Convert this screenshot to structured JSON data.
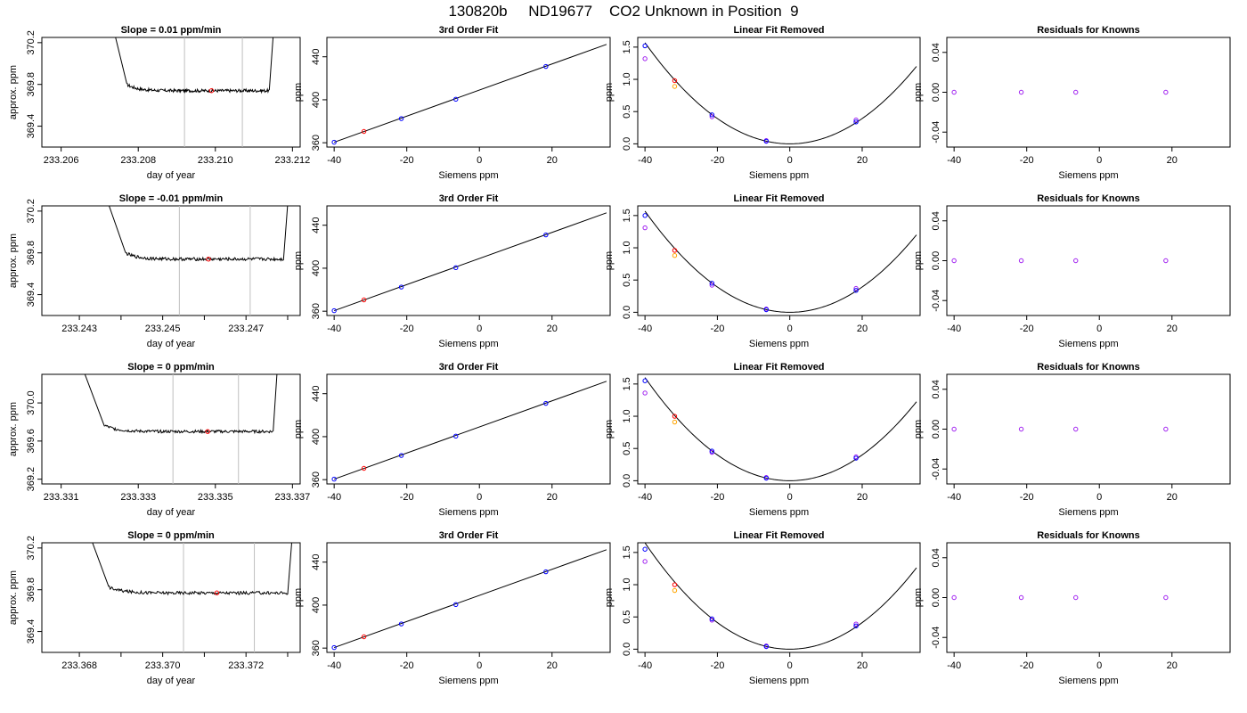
{
  "title": "130820b     ND19677    CO2 Unknown in Position  9",
  "colors": {
    "known": "#0000ff",
    "known2": "#a020f0",
    "unknown": "#ff0000",
    "unknown2": "#ffa500",
    "trace": "#000000",
    "marker_line": "#bebebe"
  },
  "chart_data": [
    {
      "type": "line",
      "row": 0,
      "col": 0,
      "title": "Slope =  0.01  ppm/min",
      "xlabel": "day of year",
      "ylabel": "approx. ppm",
      "xlim": [
        233.2055,
        233.2122
      ],
      "ylim": [
        369.2,
        370.25
      ],
      "xticks": [
        233.206,
        233.208,
        233.21,
        233.212
      ],
      "xtick_labels": [
        "233.206",
        "233.208",
        "233.210",
        "233.212"
      ],
      "yticks": [
        369.4,
        369.8,
        370.2
      ],
      "ytick_labels": [
        "369.4",
        "369.8",
        "370.2"
      ],
      "trace_start": 233.2074,
      "trace_end": 233.2115,
      "flat_start": 233.2077,
      "flat_end": 233.2114,
      "baseline": 369.74,
      "settle_from": 370.25,
      "vlines": [
        233.2092,
        233.2107
      ],
      "marker": {
        "x": 233.2099,
        "y": 369.74
      }
    },
    {
      "type": "scatter",
      "row": 0,
      "col": 1,
      "title": "3rd Order Fit",
      "xlabel": "Siemens ppm",
      "ylabel": "ppm",
      "xlim": [
        -42,
        36
      ],
      "ylim": [
        356,
        458
      ],
      "xticks": [
        -40,
        -20,
        0,
        20
      ],
      "xtick_labels": [
        "-40",
        "-20",
        "0",
        "20"
      ],
      "yticks": [
        360,
        400,
        440
      ],
      "ytick_labels": [
        "360",
        "400",
        "440"
      ],
      "line": {
        "x": [
          -40,
          35
        ],
        "y": [
          360.5,
          451.5
        ]
      },
      "points_known": [
        {
          "x": -40,
          "y": 360.5
        },
        {
          "x": -21.5,
          "y": 382.5
        },
        {
          "x": -6.5,
          "y": 400.5
        },
        {
          "x": 18.3,
          "y": 431
        }
      ],
      "points_unknown": [
        {
          "x": -31.8,
          "y": 370.5
        }
      ]
    },
    {
      "type": "scatter",
      "row": 0,
      "col": 2,
      "title": "Linear Fit Removed",
      "xlabel": "Siemens ppm",
      "ylabel": "ppm",
      "xlim": [
        -42,
        36
      ],
      "ylim": [
        -0.05,
        1.65
      ],
      "xticks": [
        -40,
        -20,
        0,
        20
      ],
      "xtick_labels": [
        "-40",
        "-20",
        "0",
        "20"
      ],
      "yticks": [
        0.0,
        0.5,
        1.0,
        1.5
      ],
      "ytick_labels": [
        "0.0",
        "0.5",
        "1.0",
        "1.5"
      ],
      "curve": {
        "a": 0.00098,
        "x0": 0,
        "x_start": -40,
        "x_end": 35
      },
      "points_known": [
        {
          "x": -40,
          "y": 1.52
        },
        {
          "x": -21.5,
          "y": 0.45
        },
        {
          "x": -6.5,
          "y": 0.04
        },
        {
          "x": 18.3,
          "y": 0.34
        }
      ],
      "points_known2": [
        {
          "x": -40,
          "y": 1.32
        },
        {
          "x": -21.5,
          "y": 0.42
        },
        {
          "x": -6.5,
          "y": 0.05
        },
        {
          "x": 18.3,
          "y": 0.37
        }
      ],
      "points_unknown": [
        {
          "x": -31.8,
          "y": 0.98
        }
      ],
      "points_unknown2": [
        {
          "x": -31.8,
          "y": 0.89
        }
      ]
    },
    {
      "type": "scatter",
      "row": 0,
      "col": 3,
      "title": "Residuals for Knowns",
      "xlabel": "Siemens ppm",
      "ylabel": "ppm",
      "xlim": [
        -42,
        36
      ],
      "ylim": [
        -0.055,
        0.055
      ],
      "xticks": [
        -40,
        -20,
        0,
        20
      ],
      "xtick_labels": [
        "-40",
        "-20",
        "0",
        "20"
      ],
      "yticks": [
        -0.04,
        0.0,
        0.04
      ],
      "ytick_labels": [
        "-0.04",
        "0.00",
        "0.04"
      ],
      "points_known2": [
        {
          "x": -40,
          "y": 0
        },
        {
          "x": -21.5,
          "y": 0
        },
        {
          "x": -6.5,
          "y": 0
        },
        {
          "x": 18.3,
          "y": 0
        }
      ]
    },
    {
      "type": "line",
      "row": 1,
      "col": 0,
      "title": "Slope =  -0.01  ppm/min",
      "xlabel": "day of year",
      "ylabel": "approx. ppm",
      "xlim": [
        233.2421,
        233.2483
      ],
      "ylim": [
        369.2,
        370.25
      ],
      "xticks": [
        233.243,
        233.244,
        233.245,
        233.246,
        233.247,
        233.248
      ],
      "xtick_labels": [
        "233.243",
        "",
        "233.245",
        "",
        "233.247",
        ""
      ],
      "yticks": [
        369.4,
        369.8,
        370.2
      ],
      "ytick_labels": [
        "369.4",
        "369.8",
        "370.2"
      ],
      "trace_start": 233.2437,
      "trace_end": 233.248,
      "flat_start": 233.2441,
      "flat_end": 233.2479,
      "baseline": 369.74,
      "settle_from": 370.25,
      "vlines": [
        233.2454,
        233.2471
      ],
      "marker": {
        "x": 233.2461,
        "y": 369.74
      }
    },
    {
      "type": "scatter",
      "row": 1,
      "col": 1,
      "title": "3rd Order Fit",
      "xlabel": "Siemens ppm",
      "ylabel": "ppm",
      "xlim": [
        -42,
        36
      ],
      "ylim": [
        356,
        458
      ],
      "xticks": [
        -40,
        -20,
        0,
        20
      ],
      "xtick_labels": [
        "-40",
        "-20",
        "0",
        "20"
      ],
      "yticks": [
        360,
        400,
        440
      ],
      "ytick_labels": [
        "360",
        "400",
        "440"
      ],
      "line": {
        "x": [
          -40,
          35
        ],
        "y": [
          360.5,
          451.5
        ]
      },
      "points_known": [
        {
          "x": -40,
          "y": 360.5
        },
        {
          "x": -21.5,
          "y": 382.5
        },
        {
          "x": -6.5,
          "y": 400.5
        },
        {
          "x": 18.3,
          "y": 431
        }
      ],
      "points_unknown": [
        {
          "x": -31.8,
          "y": 370.5
        }
      ]
    },
    {
      "type": "scatter",
      "row": 1,
      "col": 2,
      "title": "Linear Fit Removed",
      "xlabel": "Siemens ppm",
      "ylabel": "ppm",
      "xlim": [
        -42,
        36
      ],
      "ylim": [
        -0.05,
        1.65
      ],
      "xticks": [
        -40,
        -20,
        0,
        20
      ],
      "xtick_labels": [
        "-40",
        "-20",
        "0",
        "20"
      ],
      "yticks": [
        0.0,
        0.5,
        1.0,
        1.5
      ],
      "ytick_labels": [
        "0.0",
        "0.5",
        "1.0",
        "1.5"
      ],
      "curve": {
        "a": 0.00098,
        "x0": 0,
        "x_start": -40,
        "x_end": 35
      },
      "points_known": [
        {
          "x": -40,
          "y": 1.5
        },
        {
          "x": -21.5,
          "y": 0.45
        },
        {
          "x": -6.5,
          "y": 0.04
        },
        {
          "x": 18.3,
          "y": 0.34
        }
      ],
      "points_known2": [
        {
          "x": -40,
          "y": 1.31
        },
        {
          "x": -21.5,
          "y": 0.42
        },
        {
          "x": -6.5,
          "y": 0.05
        },
        {
          "x": 18.3,
          "y": 0.37
        }
      ],
      "points_unknown": [
        {
          "x": -31.8,
          "y": 0.96
        }
      ],
      "points_unknown2": [
        {
          "x": -31.8,
          "y": 0.88
        }
      ]
    },
    {
      "type": "scatter",
      "row": 1,
      "col": 3,
      "title": "Residuals for Knowns",
      "xlabel": "Siemens ppm",
      "ylabel": "ppm",
      "xlim": [
        -42,
        36
      ],
      "ylim": [
        -0.055,
        0.055
      ],
      "xticks": [
        -40,
        -20,
        0,
        20
      ],
      "xtick_labels": [
        "-40",
        "-20",
        "0",
        "20"
      ],
      "yticks": [
        -0.04,
        0.0,
        0.04
      ],
      "ytick_labels": [
        "-0.04",
        "0.00",
        "0.04"
      ],
      "points_known2": [
        {
          "x": -40,
          "y": 0
        },
        {
          "x": -21.5,
          "y": 0
        },
        {
          "x": -6.5,
          "y": 0
        },
        {
          "x": 18.3,
          "y": 0
        }
      ]
    },
    {
      "type": "line",
      "row": 2,
      "col": 0,
      "title": "Slope =  0  ppm/min",
      "xlabel": "day of year",
      "ylabel": "approx. ppm",
      "xlim": [
        233.3305,
        233.3372
      ],
      "ylim": [
        369.15,
        370.3
      ],
      "xticks": [
        233.331,
        233.333,
        233.335,
        233.337
      ],
      "xtick_labels": [
        "233.331",
        "233.333",
        "233.335",
        "233.337"
      ],
      "yticks": [
        369.2,
        369.6,
        370.0
      ],
      "ytick_labels": [
        "369.2",
        "369.6",
        "370.0"
      ],
      "trace_start": 233.3316,
      "trace_end": 233.3366,
      "flat_start": 233.3321,
      "flat_end": 233.3365,
      "baseline": 369.7,
      "settle_from": 370.3,
      "vlines": [
        233.3339,
        233.3356
      ],
      "marker": {
        "x": 233.3348,
        "y": 369.7
      }
    },
    {
      "type": "scatter",
      "row": 2,
      "col": 1,
      "title": "3rd Order Fit",
      "xlabel": "Siemens ppm",
      "ylabel": "ppm",
      "xlim": [
        -42,
        36
      ],
      "ylim": [
        356,
        458
      ],
      "xticks": [
        -40,
        -20,
        0,
        20
      ],
      "xtick_labels": [
        "-40",
        "-20",
        "0",
        "20"
      ],
      "yticks": [
        360,
        400,
        440
      ],
      "ytick_labels": [
        "360",
        "400",
        "440"
      ],
      "line": {
        "x": [
          -40,
          35
        ],
        "y": [
          360.5,
          451.5
        ]
      },
      "points_known": [
        {
          "x": -40,
          "y": 360.5
        },
        {
          "x": -21.5,
          "y": 382.5
        },
        {
          "x": -6.5,
          "y": 400.5
        },
        {
          "x": 18.3,
          "y": 431
        }
      ],
      "points_unknown": [
        {
          "x": -31.8,
          "y": 370.5
        }
      ]
    },
    {
      "type": "scatter",
      "row": 2,
      "col": 2,
      "title": "Linear Fit Removed",
      "xlabel": "Siemens ppm",
      "ylabel": "ppm",
      "xlim": [
        -42,
        36
      ],
      "ylim": [
        -0.05,
        1.65
      ],
      "xticks": [
        -40,
        -20,
        0,
        20
      ],
      "xtick_labels": [
        "-40",
        "-20",
        "0",
        "20"
      ],
      "yticks": [
        0.0,
        0.5,
        1.0,
        1.5
      ],
      "ytick_labels": [
        "0.0",
        "0.5",
        "1.0",
        "1.5"
      ],
      "curve": {
        "a": 0.001,
        "x0": 0,
        "x_start": -40,
        "x_end": 35
      },
      "points_known": [
        {
          "x": -40,
          "y": 1.55
        },
        {
          "x": -21.5,
          "y": 0.46
        },
        {
          "x": -6.5,
          "y": 0.04
        },
        {
          "x": 18.3,
          "y": 0.35
        }
      ],
      "points_known2": [
        {
          "x": -40,
          "y": 1.36
        },
        {
          "x": -21.5,
          "y": 0.44
        },
        {
          "x": -6.5,
          "y": 0.05
        },
        {
          "x": 18.3,
          "y": 0.37
        }
      ],
      "points_unknown": [
        {
          "x": -31.8,
          "y": 1.0
        }
      ],
      "points_unknown2": [
        {
          "x": -31.8,
          "y": 0.91
        }
      ]
    },
    {
      "type": "scatter",
      "row": 2,
      "col": 3,
      "title": "Residuals for Knowns",
      "xlabel": "Siemens ppm",
      "ylabel": "ppm",
      "xlim": [
        -42,
        36
      ],
      "ylim": [
        -0.055,
        0.055
      ],
      "xticks": [
        -40,
        -20,
        0,
        20
      ],
      "xtick_labels": [
        "-40",
        "-20",
        "0",
        "20"
      ],
      "yticks": [
        -0.04,
        0.0,
        0.04
      ],
      "ytick_labels": [
        "-0.04",
        "0.00",
        "0.04"
      ],
      "points_known2": [
        {
          "x": -40,
          "y": 0
        },
        {
          "x": -21.5,
          "y": 0
        },
        {
          "x": -6.5,
          "y": 0
        },
        {
          "x": 18.3,
          "y": 0
        }
      ]
    },
    {
      "type": "line",
      "row": 3,
      "col": 0,
      "title": "Slope =  0  ppm/min",
      "xlabel": "day of year",
      "ylabel": "approx. ppm",
      "xlim": [
        233.3671,
        233.3733
      ],
      "ylim": [
        369.2,
        370.25
      ],
      "xticks": [
        233.368,
        233.369,
        233.37,
        233.371,
        233.372,
        233.373
      ],
      "xtick_labels": [
        "233.368",
        "",
        "233.370",
        "",
        "233.372",
        ""
      ],
      "yticks": [
        369.4,
        369.8,
        370.2
      ],
      "ytick_labels": [
        "369.4",
        "369.8",
        "370.2"
      ],
      "trace_start": 233.3683,
      "trace_end": 233.3731,
      "flat_start": 233.3687,
      "flat_end": 233.373,
      "baseline": 369.77,
      "settle_from": 370.25,
      "vlines": [
        233.3705,
        233.3722
      ],
      "marker": {
        "x": 233.3713,
        "y": 369.77
      }
    },
    {
      "type": "scatter",
      "row": 3,
      "col": 1,
      "title": "3rd Order Fit",
      "xlabel": "Siemens ppm",
      "ylabel": "ppm",
      "xlim": [
        -42,
        36
      ],
      "ylim": [
        356,
        458
      ],
      "xticks": [
        -40,
        -20,
        0,
        20
      ],
      "xtick_labels": [
        "-40",
        "-20",
        "0",
        "20"
      ],
      "yticks": [
        360,
        400,
        440
      ],
      "ytick_labels": [
        "360",
        "400",
        "440"
      ],
      "line": {
        "x": [
          -40,
          35
        ],
        "y": [
          360.5,
          451.5
        ]
      },
      "points_known": [
        {
          "x": -40,
          "y": 360.5
        },
        {
          "x": -21.5,
          "y": 382.5
        },
        {
          "x": -6.5,
          "y": 400.5
        },
        {
          "x": 18.3,
          "y": 431
        }
      ],
      "points_unknown": [
        {
          "x": -31.8,
          "y": 370.5
        }
      ]
    },
    {
      "type": "scatter",
      "row": 3,
      "col": 2,
      "title": "Linear Fit Removed",
      "xlabel": "Siemens ppm",
      "ylabel": "ppm",
      "xlim": [
        -42,
        36
      ],
      "ylim": [
        -0.05,
        1.65
      ],
      "xticks": [
        -40,
        -20,
        0,
        20
      ],
      "xtick_labels": [
        "-40",
        "-20",
        "0",
        "20"
      ],
      "yticks": [
        0.0,
        0.5,
        1.0,
        1.5
      ],
      "ytick_labels": [
        "0.0",
        "0.5",
        "1.0",
        "1.5"
      ],
      "curve": {
        "a": 0.00103,
        "x0": 0,
        "x_start": -40,
        "x_end": 35
      },
      "points_known": [
        {
          "x": -40,
          "y": 1.55
        },
        {
          "x": -21.5,
          "y": 0.47
        },
        {
          "x": -6.5,
          "y": 0.04
        },
        {
          "x": 18.3,
          "y": 0.36
        }
      ],
      "points_known2": [
        {
          "x": -40,
          "y": 1.36
        },
        {
          "x": -21.5,
          "y": 0.45
        },
        {
          "x": -6.5,
          "y": 0.05
        },
        {
          "x": 18.3,
          "y": 0.39
        }
      ],
      "points_unknown": [
        {
          "x": -31.8,
          "y": 1.0
        }
      ],
      "points_unknown2": [
        {
          "x": -31.8,
          "y": 0.91
        }
      ]
    },
    {
      "type": "scatter",
      "row": 3,
      "col": 3,
      "title": "Residuals for Knowns",
      "xlabel": "Siemens ppm",
      "ylabel": "ppm",
      "xlim": [
        -42,
        36
      ],
      "ylim": [
        -0.055,
        0.055
      ],
      "xticks": [
        -40,
        -20,
        0,
        20
      ],
      "xtick_labels": [
        "-40",
        "-20",
        "0",
        "20"
      ],
      "yticks": [
        -0.04,
        0.0,
        0.04
      ],
      "ytick_labels": [
        "-0.04",
        "0.00",
        "0.04"
      ],
      "points_known2": [
        {
          "x": -40,
          "y": 0
        },
        {
          "x": -21.5,
          "y": 0
        },
        {
          "x": -6.5,
          "y": 0
        },
        {
          "x": 18.3,
          "y": 0
        }
      ]
    }
  ]
}
